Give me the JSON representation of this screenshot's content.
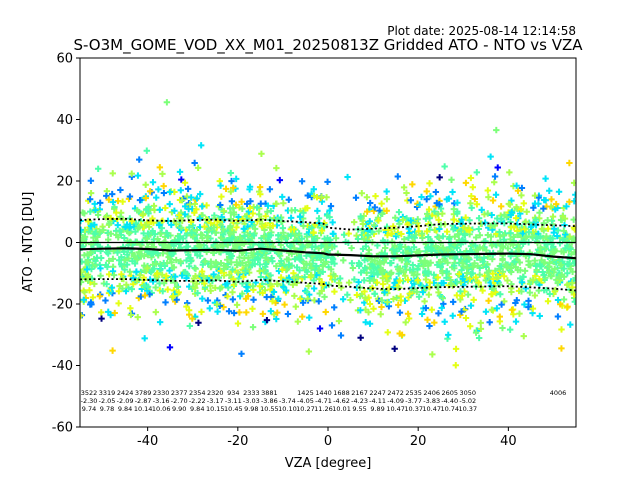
{
  "plot_date": "Plot date: 2025-08-14 12:14:58",
  "chart_data": {
    "type": "scatter",
    "title": "S-O3M_GOME_VOD_XX_M01_20250813Z Gridded ATO - NTO vs VZA",
    "xlabel": "VZA [degree]",
    "ylabel": "ATO - NTO [DU]",
    "xlim": [
      -55,
      55
    ],
    "ylim": [
      -60,
      60
    ],
    "xticks": [
      -40,
      -20,
      0,
      20,
      40
    ],
    "yticks": [
      -60,
      -40,
      -20,
      0,
      20,
      40,
      60
    ],
    "grid": false,
    "legend": "none",
    "colors": {
      "scatter": [
        "#00007f",
        "#0000ff",
        "#007fff",
        "#00e4f8",
        "#4dffaa",
        "#7cff79",
        "#aaff4d",
        "#e4ff13",
        "#ffd700"
      ],
      "zero_line": "#000000",
      "mean_line": "#000000",
      "std_lines": "#000000"
    },
    "bins": {
      "vza": [
        -53,
        -49,
        -45,
        -41,
        -37,
        -33,
        -29,
        -25,
        -21,
        -17,
        -13,
        -9,
        -5,
        -1,
        3,
        7,
        11,
        15,
        19,
        23,
        27,
        31,
        35,
        39,
        43,
        47,
        51
      ],
      "count": [
        "3522",
        "3319",
        "2424",
        "3789",
        "2330",
        "2377",
        "2354",
        "2320",
        "934",
        "2333",
        "3881",
        "",
        "1425",
        "1440",
        "1688",
        "2167",
        "2247",
        "2472",
        "2535",
        "2406",
        "2605",
        "3050",
        "",
        "",
        "",
        "",
        "4006"
      ],
      "mean": [
        "-2.30",
        "-2.05",
        "-2.09",
        "-2.87",
        "-3.16",
        "-2.70",
        "-2.22",
        "-3.17",
        "-3.11",
        "-3.03",
        "-3.86",
        "-3.74",
        "-4.05",
        "-4.71",
        "-4.62",
        "-4.23",
        "-4.11",
        "-4.09",
        "-3.77",
        "-3.83",
        "-4.40",
        "-5.02",
        "",
        "",
        "",
        "",
        ""
      ],
      "std": [
        "9.74",
        "9.78",
        "9.84",
        "10.14",
        "10.06",
        "9.90",
        "9.84",
        "10.15",
        "10.45",
        "9.98",
        "10.55",
        "10.10",
        "10.27",
        "11.26",
        "10.01",
        "9.55",
        "9.89",
        "10.47",
        "10.37",
        "10.47",
        "10.74",
        "10.37",
        "",
        "",
        "",
        "",
        ""
      ]
    },
    "mean_curve": {
      "x": [
        -55,
        -50,
        -45,
        -40,
        -35,
        -30,
        -25,
        -20,
        -15,
        -10,
        -5,
        -1,
        0,
        5,
        10,
        15,
        20,
        25,
        30,
        35,
        40,
        45,
        50,
        55
      ],
      "y": [
        -2.2,
        -2.0,
        -1.9,
        -2.1,
        -2.6,
        -2.5,
        -2.4,
        -2.7,
        -2.0,
        -2.6,
        -3.2,
        -3.5,
        -3.9,
        -4.1,
        -4.5,
        -4.5,
        -4.2,
        -3.9,
        -3.8,
        -3.7,
        -3.6,
        -3.8,
        -4.6,
        -5.1
      ]
    },
    "upper_std_curve": {
      "x": [
        -55,
        -50,
        -45,
        -40,
        -35,
        -30,
        -25,
        -20,
        -15,
        -10,
        -5,
        -1,
        0,
        5,
        10,
        15,
        20,
        25,
        30,
        35,
        40,
        45,
        50,
        55
      ],
      "y": [
        7.3,
        7.6,
        7.7,
        7.2,
        7.0,
        7.3,
        7.4,
        7.0,
        7.4,
        7.0,
        6.6,
        6.1,
        4.8,
        4.2,
        4.5,
        4.8,
        5.3,
        6.0,
        6.1,
        6.2,
        6.2,
        5.9,
        5.6,
        5.3
      ]
    },
    "lower_std_curve": {
      "x": [
        -55,
        -50,
        -45,
        -40,
        -35,
        -30,
        -25,
        -20,
        -15,
        -10,
        -5,
        -1,
        0,
        5,
        10,
        15,
        20,
        25,
        30,
        35,
        40,
        45,
        50,
        55
      ],
      "y": [
        -12.0,
        -11.9,
        -11.9,
        -12.2,
        -12.5,
        -12.5,
        -12.3,
        -12.8,
        -12.2,
        -12.6,
        -13.1,
        -13.5,
        -14.0,
        -14.4,
        -15.0,
        -15.2,
        -14.8,
        -14.5,
        -14.4,
        -14.3,
        -14.2,
        -14.6,
        -15.0,
        -15.6
      ]
    }
  }
}
